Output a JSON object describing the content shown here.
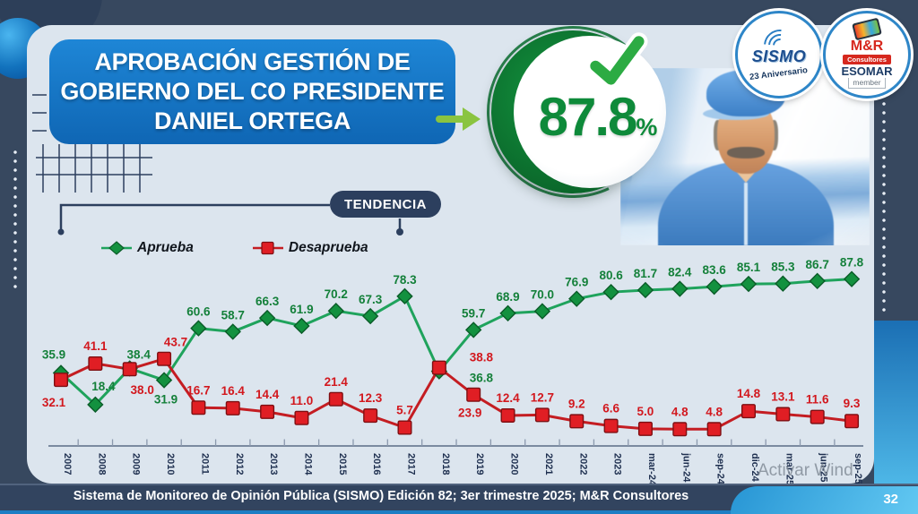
{
  "header": {
    "title_lines": [
      "APROBACIÓN GESTIÓN DE",
      "GOBIERNO DEL CO PRESIDENTE",
      "DANIEL ORTEGA"
    ]
  },
  "badge": {
    "value": "87.8",
    "percent": "%"
  },
  "logos": {
    "sismo": {
      "name": "SISMO",
      "subtitle": "23 Aniversario"
    },
    "mr": {
      "name": "M&R",
      "sub": "Consultores",
      "org": "ESOMAR",
      "member": "member"
    }
  },
  "tendencia": {
    "label": "TENDENCIA"
  },
  "chart_data": {
    "type": "line",
    "title": "TENDENCIA",
    "categories": [
      "2007",
      "2008",
      "2009",
      "2010",
      "2011",
      "2012",
      "2013",
      "2014",
      "2015",
      "2016",
      "2017",
      "2018",
      "2019",
      "2020",
      "2021",
      "2022",
      "2023",
      "mar-24",
      "jun-24",
      "sep-24",
      "dic-24",
      "mar-25",
      "jun-25",
      "sep-25"
    ],
    "series": [
      {
        "name": "Aprueba",
        "marker": "diamond",
        "color": "#13913f",
        "line_color": "#1fa35c",
        "label_color": "#14803a",
        "values": [
          35.9,
          18.4,
          38.4,
          31.9,
          60.6,
          58.7,
          66.3,
          61.9,
          70.2,
          67.3,
          78.3,
          36.8,
          59.7,
          68.9,
          70.0,
          76.9,
          80.6,
          81.7,
          82.4,
          83.6,
          85.1,
          85.3,
          86.7,
          87.8
        ]
      },
      {
        "name": "Desaprueba",
        "marker": "square",
        "color": "#e01e24",
        "line_color": "#c41d22",
        "label_color": "#d2181e",
        "values": [
          32.1,
          41.1,
          38.0,
          43.7,
          16.7,
          16.4,
          14.4,
          11.0,
          21.4,
          12.3,
          5.7,
          38.8,
          23.9,
          12.4,
          12.7,
          9.2,
          6.6,
          5.0,
          4.8,
          4.8,
          14.8,
          13.1,
          11.6,
          9.3
        ]
      }
    ],
    "ylim": [
      0,
      100
    ],
    "grid": false,
    "legend_position": "top-left",
    "x_tick_rotation": 90,
    "latest_value": "87.8%"
  },
  "footer": {
    "source": "Sistema de Monitoreo de Opinión Pública (SISMO) Edición 82; 3er trimestre 2025; M&R Consultores",
    "page_number": "32"
  },
  "watermark": {
    "text": "Activar Wind"
  }
}
